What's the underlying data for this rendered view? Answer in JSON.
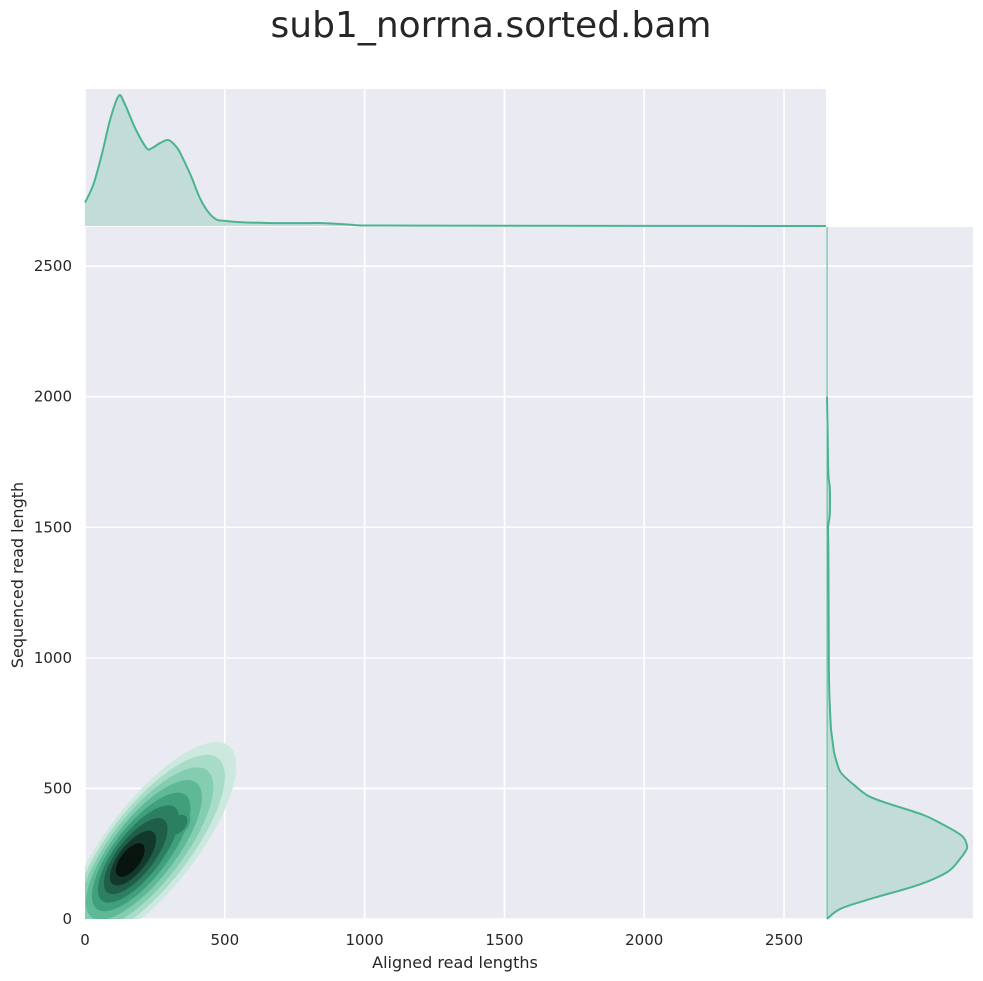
{
  "chart_data": {
    "type": "kde-jointplot",
    "title": "sub1_norrna.sorted.bam",
    "xlabel": "Aligned read lengths",
    "ylabel": "Sequenced read length",
    "xlim": [
      0,
      2650
    ],
    "ylim": [
      0,
      2650
    ],
    "xticks": [
      0,
      500,
      1000,
      1500,
      2000,
      2500
    ],
    "yticks": [
      0,
      500,
      1000,
      1500,
      2000,
      2500
    ],
    "grid": true,
    "background": "#eaeaf2",
    "colors": {
      "line": "#4cb391",
      "fill": "#c2ddd7",
      "levels": [
        "#cde9df",
        "#a9dcc8",
        "#84cdb0",
        "#5fb996",
        "#40a07b",
        "#2c7f60",
        "#1f5e48",
        "#13392d",
        "#08150f"
      ]
    },
    "joint_density": {
      "description_levels": 9,
      "peak": {
        "x": 130,
        "y": 200
      },
      "secondary_peak": {
        "x": 330,
        "y": 360
      },
      "outer_extent": {
        "x": [
          0,
          530
        ],
        "y": [
          0,
          620
        ]
      }
    },
    "marginal_x": {
      "x": [
        0,
        30,
        60,
        90,
        120,
        140,
        180,
        220,
        240,
        270,
        300,
        330,
        350,
        380,
        410,
        440,
        470,
        500,
        550,
        650,
        750,
        850,
        950,
        1000,
        1200,
        1500,
        2000,
        2650
      ],
      "density": [
        0.18,
        0.32,
        0.55,
        0.82,
        1.0,
        0.95,
        0.75,
        0.6,
        0.6,
        0.64,
        0.66,
        0.6,
        0.52,
        0.38,
        0.22,
        0.11,
        0.05,
        0.04,
        0.03,
        0.023,
        0.022,
        0.022,
        0.01,
        0.004,
        0.003,
        0.002,
        0.001,
        0.0
      ]
    },
    "marginal_y": {
      "y": [
        0,
        40,
        80,
        130,
        180,
        230,
        260,
        280,
        320,
        370,
        400,
        440,
        470,
        510,
        560,
        600,
        640,
        680,
        720,
        760,
        900,
        1100,
        1400,
        1500,
        1550,
        1650,
        1700,
        1850,
        2000
      ],
      "density": [
        0.0,
        0.1,
        0.33,
        0.65,
        0.86,
        0.95,
        0.99,
        1.0,
        0.96,
        0.8,
        0.68,
        0.45,
        0.3,
        0.2,
        0.1,
        0.07,
        0.05,
        0.04,
        0.03,
        0.025,
        0.015,
        0.012,
        0.01,
        0.008,
        0.02,
        0.02,
        0.01,
        0.005,
        0.0
      ]
    }
  }
}
